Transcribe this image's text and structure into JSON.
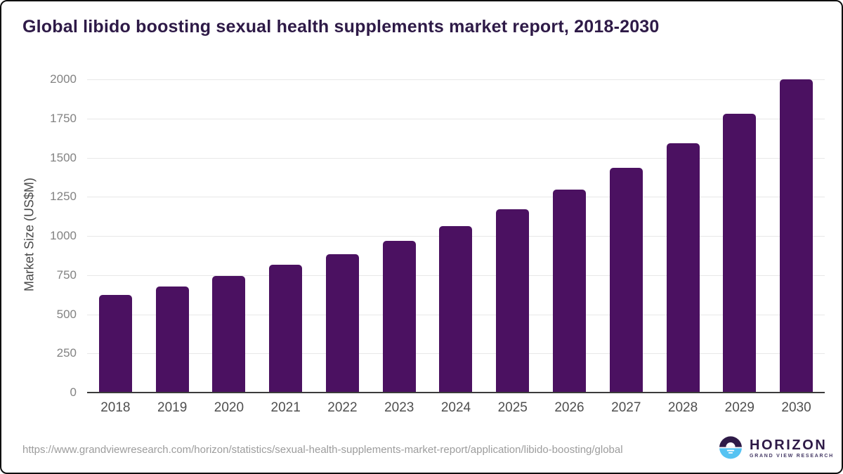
{
  "title": "Global libido boosting sexual health supplements market report, 2018-2030",
  "chart_data": {
    "type": "bar",
    "title": "Global libido boosting sexual health supplements market report, 2018-2030",
    "categories": [
      "2018",
      "2019",
      "2020",
      "2021",
      "2022",
      "2023",
      "2024",
      "2025",
      "2026",
      "2027",
      "2028",
      "2029",
      "2030"
    ],
    "values": [
      625,
      675,
      745,
      815,
      885,
      970,
      1065,
      1170,
      1295,
      1435,
      1590,
      1780,
      2000
    ],
    "xlabel": "",
    "ylabel": "Market Size (US$M)",
    "ylim": [
      0,
      2000
    ],
    "yticks": [
      0,
      250,
      500,
      750,
      1000,
      1250,
      1500,
      1750,
      2000
    ],
    "grid": true,
    "legend": false,
    "bar_color": "#4b1161"
  },
  "colors": {
    "title_text": "#2e1a47",
    "bar": "#4b1161",
    "gridline": "#e8e8e8",
    "axis_line": "#3b3b3b",
    "y_tick_text": "#828282",
    "x_tick_text": "#4f4f4f",
    "url_text": "#9c9c9c",
    "logo_purple": "#2e1a47",
    "logo_blue": "#56c3f2"
  },
  "footer": {
    "source_url": "https://www.grandviewresearch.com/horizon/statistics/sexual-health-supplements-market-report/application/libido-boosting/global",
    "logo": {
      "brand": "HORIZON",
      "sub_brand": "GRAND VIEW RESEARCH"
    }
  }
}
